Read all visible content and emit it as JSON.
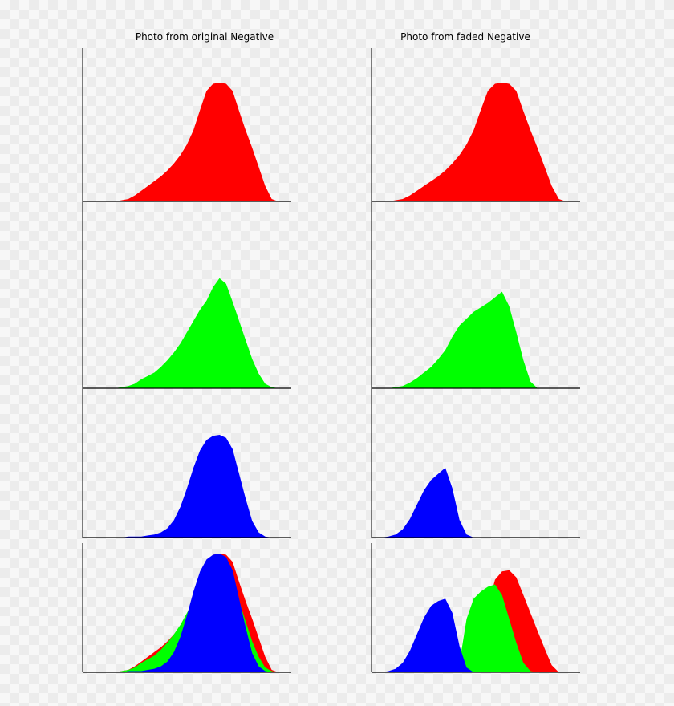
{
  "figure": {
    "column_titles": [
      "Photo from original Negative",
      "Photo from faded Negative"
    ]
  },
  "chart_data": [
    {
      "type": "area",
      "title": "Photo from original Negative",
      "xlabel": "",
      "ylabel": "",
      "grid": false,
      "x": [
        0,
        8,
        16,
        24,
        32,
        40,
        48,
        56,
        64,
        72,
        80,
        88,
        96,
        104,
        112,
        120,
        128,
        136,
        144,
        152,
        160,
        168,
        176,
        184,
        192,
        200,
        208,
        216,
        224,
        232,
        240,
        248,
        256
      ],
      "panels": [
        {
          "name": "red",
          "series": [
            {
              "name": "red",
              "color": "#ff0000",
              "values": [
                0,
                0,
                0,
                0,
                0,
                0,
                0.01,
                0.02,
                0.05,
                0.09,
                0.13,
                0.17,
                0.21,
                0.26,
                0.32,
                0.39,
                0.48,
                0.6,
                0.77,
                0.93,
                0.99,
                1.0,
                0.99,
                0.93,
                0.76,
                0.6,
                0.45,
                0.29,
                0.13,
                0.02,
                0,
                0,
                0
              ]
            }
          ]
        },
        {
          "name": "green",
          "series": [
            {
              "name": "green",
              "color": "#00ff00",
              "values": [
                0,
                0,
                0,
                0,
                0,
                0,
                0.01,
                0.02,
                0.04,
                0.08,
                0.11,
                0.14,
                0.19,
                0.25,
                0.32,
                0.4,
                0.5,
                0.6,
                0.7,
                0.78,
                0.9,
                0.98,
                0.93,
                0.77,
                0.6,
                0.43,
                0.26,
                0.13,
                0.04,
                0.01,
                0,
                0,
                0
              ]
            }
          ]
        },
        {
          "name": "blue",
          "series": [
            {
              "name": "blue",
              "color": "#0000ff",
              "values": [
                0,
                0,
                0,
                0,
                0,
                0,
                0,
                0.01,
                0.01,
                0.01,
                0.02,
                0.03,
                0.05,
                0.09,
                0.17,
                0.3,
                0.48,
                0.68,
                0.85,
                0.95,
                0.99,
                1.0,
                0.97,
                0.86,
                0.62,
                0.38,
                0.16,
                0.05,
                0.01,
                0,
                0,
                0,
                0
              ]
            }
          ]
        },
        {
          "name": "combined",
          "series": [
            {
              "name": "red",
              "color": "#ff0000",
              "values": [
                0,
                0,
                0,
                0,
                0,
                0,
                0.01,
                0.02,
                0.05,
                0.09,
                0.13,
                0.17,
                0.21,
                0.26,
                0.32,
                0.39,
                0.48,
                0.6,
                0.77,
                0.93,
                0.99,
                1.0,
                0.99,
                0.93,
                0.76,
                0.6,
                0.45,
                0.29,
                0.13,
                0.02,
                0,
                0,
                0
              ]
            },
            {
              "name": "green",
              "color": "#00ff00",
              "values": [
                0,
                0,
                0,
                0,
                0,
                0,
                0.01,
                0.02,
                0.04,
                0.08,
                0.11,
                0.14,
                0.19,
                0.25,
                0.32,
                0.4,
                0.5,
                0.6,
                0.7,
                0.78,
                0.9,
                0.98,
                0.93,
                0.77,
                0.6,
                0.43,
                0.26,
                0.13,
                0.04,
                0.01,
                0,
                0,
                0
              ]
            },
            {
              "name": "blue",
              "color": "#0000ff",
              "values": [
                0,
                0,
                0,
                0,
                0,
                0,
                0,
                0.01,
                0.01,
                0.01,
                0.02,
                0.03,
                0.05,
                0.09,
                0.17,
                0.3,
                0.48,
                0.68,
                0.85,
                0.95,
                0.99,
                1.0,
                0.97,
                0.86,
                0.62,
                0.38,
                0.16,
                0.05,
                0.01,
                0,
                0,
                0,
                0
              ]
            }
          ]
        }
      ]
    },
    {
      "type": "area",
      "title": "Photo from faded Negative",
      "xlabel": "",
      "ylabel": "",
      "grid": false,
      "x": [
        0,
        8,
        16,
        24,
        32,
        40,
        48,
        56,
        64,
        72,
        80,
        88,
        96,
        104,
        112,
        120,
        128,
        136,
        144,
        152,
        160,
        168,
        176,
        184,
        192,
        200,
        208,
        216,
        224,
        232,
        240,
        248,
        256
      ],
      "panels": [
        {
          "name": "red",
          "series": [
            {
              "name": "red",
              "color": "#ff0000",
              "values": [
                0,
                0,
                0,
                0,
                0,
                0,
                0.01,
                0.02,
                0.05,
                0.09,
                0.13,
                0.17,
                0.21,
                0.26,
                0.32,
                0.39,
                0.48,
                0.6,
                0.77,
                0.93,
                0.99,
                1.0,
                0.99,
                0.93,
                0.76,
                0.6,
                0.45,
                0.29,
                0.13,
                0.02,
                0,
                0,
                0
              ]
            }
          ]
        },
        {
          "name": "green",
          "series": [
            {
              "name": "green",
              "color": "#00ff00",
              "values": [
                0,
                0,
                0,
                0,
                0,
                0,
                0.01,
                0.02,
                0.05,
                0.09,
                0.14,
                0.19,
                0.26,
                0.34,
                0.46,
                0.56,
                0.62,
                0.68,
                0.72,
                0.76,
                0.81,
                0.86,
                0.73,
                0.5,
                0.25,
                0.06,
                0,
                0,
                0,
                0,
                0,
                0,
                0
              ]
            }
          ]
        },
        {
          "name": "blue",
          "series": [
            {
              "name": "blue",
              "color": "#0000ff",
              "values": [
                0,
                0,
                0,
                0,
                0,
                0.01,
                0.03,
                0.08,
                0.18,
                0.32,
                0.46,
                0.56,
                0.62,
                0.68,
                0.48,
                0.17,
                0.03,
                0,
                0,
                0,
                0,
                0,
                0,
                0,
                0,
                0,
                0,
                0,
                0,
                0,
                0,
                0,
                0
              ]
            }
          ]
        },
        {
          "name": "combined",
          "series": [
            {
              "name": "red",
              "color": "#ff0000",
              "values": [
                0,
                0,
                0,
                0,
                0,
                0,
                0,
                0,
                0,
                0,
                0,
                0,
                0,
                0,
                0,
                0,
                0,
                0.02,
                0.2,
                0.55,
                0.78,
                0.85,
                0.86,
                0.8,
                0.65,
                0.5,
                0.35,
                0.2,
                0.06,
                0,
                0,
                0,
                0
              ]
            },
            {
              "name": "green",
              "color": "#00ff00",
              "values": [
                0,
                0,
                0,
                0,
                0,
                0,
                0,
                0,
                0,
                0,
                0,
                0,
                0,
                0,
                0,
                0.08,
                0.45,
                0.62,
                0.68,
                0.72,
                0.74,
                0.65,
                0.45,
                0.25,
                0.08,
                0.01,
                0,
                0,
                0,
                0,
                0,
                0,
                0
              ]
            },
            {
              "name": "blue",
              "color": "#0000ff",
              "values": [
                0,
                0,
                0,
                0,
                0,
                0.01,
                0.03,
                0.08,
                0.18,
                0.32,
                0.46,
                0.56,
                0.6,
                0.62,
                0.5,
                0.22,
                0.04,
                0,
                0,
                0,
                0,
                0,
                0,
                0,
                0,
                0,
                0,
                0,
                0,
                0,
                0,
                0,
                0
              ]
            }
          ]
        }
      ]
    }
  ]
}
